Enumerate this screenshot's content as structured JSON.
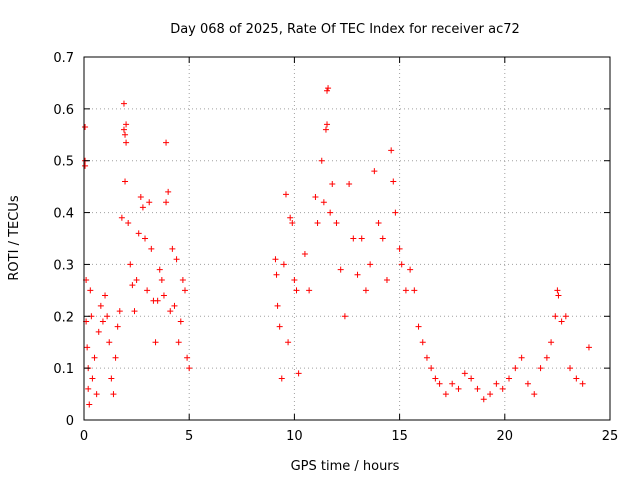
{
  "chart_data": {
    "type": "scatter",
    "title": "Day 068 of 2025, Rate Of TEC Index for receiver ac72",
    "xlabel": "GPS time / hours",
    "ylabel": "ROTI / TECUs",
    "xlim": [
      0,
      25
    ],
    "ylim": [
      0,
      0.7
    ],
    "x_ticks": [
      "0",
      "5",
      "10",
      "15",
      "20",
      "25"
    ],
    "y_ticks": [
      "0",
      "0.1",
      "0.2",
      "0.3",
      "0.4",
      "0.5",
      "0.6",
      "0.7"
    ],
    "grid": true,
    "marker": "+",
    "color": "#ff0000",
    "series": [
      {
        "name": "",
        "points": [
          [
            0.05,
            0.565
          ],
          [
            0.05,
            0.5
          ],
          [
            0.05,
            0.49
          ],
          [
            0.1,
            0.27
          ],
          [
            0.1,
            0.19
          ],
          [
            0.15,
            0.14
          ],
          [
            0.2,
            0.1
          ],
          [
            0.2,
            0.06
          ],
          [
            0.25,
            0.03
          ],
          [
            0.3,
            0.25
          ],
          [
            0.35,
            0.2
          ],
          [
            0.4,
            0.08
          ],
          [
            0.5,
            0.12
          ],
          [
            0.6,
            0.05
          ],
          [
            0.7,
            0.17
          ],
          [
            0.8,
            0.22
          ],
          [
            0.9,
            0.19
          ],
          [
            1.0,
            0.24
          ],
          [
            1.1,
            0.2
          ],
          [
            1.2,
            0.15
          ],
          [
            1.3,
            0.08
          ],
          [
            1.4,
            0.05
          ],
          [
            1.5,
            0.12
          ],
          [
            1.6,
            0.18
          ],
          [
            1.7,
            0.21
          ],
          [
            1.8,
            0.39
          ],
          [
            1.9,
            0.56
          ],
          [
            1.9,
            0.61
          ],
          [
            1.95,
            0.55
          ],
          [
            2.0,
            0.57
          ],
          [
            1.95,
            0.46
          ],
          [
            2.0,
            0.535
          ],
          [
            2.1,
            0.38
          ],
          [
            2.2,
            0.3
          ],
          [
            2.3,
            0.26
          ],
          [
            2.4,
            0.21
          ],
          [
            2.5,
            0.27
          ],
          [
            2.6,
            0.36
          ],
          [
            2.7,
            0.43
          ],
          [
            2.8,
            0.41
          ],
          [
            2.9,
            0.35
          ],
          [
            3.0,
            0.25
          ],
          [
            3.1,
            0.42
          ],
          [
            3.2,
            0.33
          ],
          [
            3.3,
            0.23
          ],
          [
            3.4,
            0.15
          ],
          [
            3.5,
            0.23
          ],
          [
            3.6,
            0.29
          ],
          [
            3.7,
            0.27
          ],
          [
            3.8,
            0.24
          ],
          [
            3.9,
            0.535
          ],
          [
            3.9,
            0.42
          ],
          [
            4.0,
            0.44
          ],
          [
            4.1,
            0.21
          ],
          [
            4.2,
            0.33
          ],
          [
            4.3,
            0.22
          ],
          [
            4.4,
            0.31
          ],
          [
            4.5,
            0.15
          ],
          [
            4.6,
            0.19
          ],
          [
            4.7,
            0.27
          ],
          [
            4.8,
            0.25
          ],
          [
            4.9,
            0.12
          ],
          [
            5.0,
            0.1
          ],
          [
            9.1,
            0.31
          ],
          [
            9.15,
            0.28
          ],
          [
            9.2,
            0.22
          ],
          [
            9.3,
            0.18
          ],
          [
            9.4,
            0.08
          ],
          [
            9.5,
            0.3
          ],
          [
            9.6,
            0.435
          ],
          [
            9.7,
            0.15
          ],
          [
            9.8,
            0.39
          ],
          [
            9.9,
            0.38
          ],
          [
            10.0,
            0.27
          ],
          [
            10.1,
            0.25
          ],
          [
            10.2,
            0.09
          ],
          [
            10.5,
            0.32
          ],
          [
            10.7,
            0.25
          ],
          [
            11.0,
            0.43
          ],
          [
            11.1,
            0.38
          ],
          [
            11.3,
            0.5
          ],
          [
            11.4,
            0.42
          ],
          [
            11.5,
            0.56
          ],
          [
            11.55,
            0.57
          ],
          [
            11.55,
            0.635
          ],
          [
            11.6,
            0.64
          ],
          [
            11.7,
            0.4
          ],
          [
            11.8,
            0.455
          ],
          [
            12.0,
            0.38
          ],
          [
            12.2,
            0.29
          ],
          [
            12.4,
            0.2
          ],
          [
            12.6,
            0.455
          ],
          [
            12.8,
            0.35
          ],
          [
            13.0,
            0.28
          ],
          [
            13.2,
            0.35
          ],
          [
            13.4,
            0.25
          ],
          [
            13.6,
            0.3
          ],
          [
            13.8,
            0.48
          ],
          [
            14.0,
            0.38
          ],
          [
            14.2,
            0.35
          ],
          [
            14.4,
            0.27
          ],
          [
            14.6,
            0.52
          ],
          [
            14.7,
            0.46
          ],
          [
            14.8,
            0.4
          ],
          [
            15.0,
            0.33
          ],
          [
            15.1,
            0.3
          ],
          [
            15.3,
            0.25
          ],
          [
            15.5,
            0.29
          ],
          [
            15.7,
            0.25
          ],
          [
            15.9,
            0.18
          ],
          [
            16.1,
            0.15
          ],
          [
            16.3,
            0.12
          ],
          [
            16.5,
            0.1
          ],
          [
            16.7,
            0.08
          ],
          [
            16.9,
            0.07
          ],
          [
            17.2,
            0.05
          ],
          [
            17.5,
            0.07
          ],
          [
            17.8,
            0.06
          ],
          [
            18.1,
            0.09
          ],
          [
            18.4,
            0.08
          ],
          [
            18.7,
            0.06
          ],
          [
            19.0,
            0.04
          ],
          [
            19.3,
            0.05
          ],
          [
            19.6,
            0.07
          ],
          [
            19.9,
            0.06
          ],
          [
            20.2,
            0.08
          ],
          [
            20.5,
            0.1
          ],
          [
            20.8,
            0.12
          ],
          [
            21.1,
            0.07
          ],
          [
            21.4,
            0.05
          ],
          [
            21.7,
            0.1
          ],
          [
            22.0,
            0.12
          ],
          [
            22.2,
            0.15
          ],
          [
            22.4,
            0.2
          ],
          [
            22.5,
            0.25
          ],
          [
            22.55,
            0.24
          ],
          [
            22.7,
            0.19
          ],
          [
            22.9,
            0.2
          ],
          [
            23.1,
            0.1
          ],
          [
            23.4,
            0.08
          ],
          [
            23.7,
            0.07
          ],
          [
            24.0,
            0.14
          ]
        ]
      }
    ]
  }
}
